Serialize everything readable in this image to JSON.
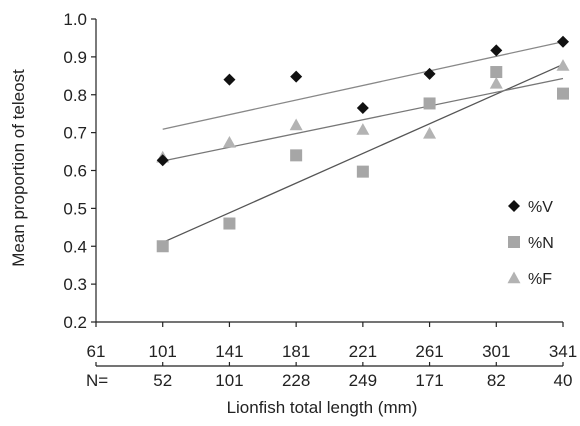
{
  "chart_data": {
    "type": "scatter",
    "title": "",
    "xlabel": "Lionfish total length (mm)",
    "ylabel": "Mean proportion of teleost",
    "x_ticks": [
      61,
      101,
      141,
      181,
      221,
      261,
      301,
      341
    ],
    "xlim": [
      61,
      341
    ],
    "ylim": [
      0.2,
      1.0
    ],
    "y_ticks": [
      "0.2",
      "0.3",
      "0.4",
      "0.5",
      "0.6",
      "0.7",
      "0.8",
      "0.9",
      "1.0"
    ],
    "grid": false,
    "legend_position": "right",
    "sample_size": {
      "label": "N=",
      "x": [
        101,
        141,
        181,
        221,
        261,
        301,
        341
      ],
      "values": [
        52,
        101,
        228,
        249,
        171,
        82,
        40
      ]
    },
    "series": [
      {
        "name": "%V",
        "marker": "diamond",
        "color": "#111111",
        "x": [
          101,
          141,
          181,
          221,
          261,
          301,
          341
        ],
        "values": [
          0.627,
          0.84,
          0.848,
          0.765,
          0.855,
          0.917,
          0.94
        ],
        "trendline": {
          "start": [
            101,
            0.709
          ],
          "end": [
            341,
            0.94
          ],
          "color": "#888888"
        }
      },
      {
        "name": "%N",
        "marker": "square",
        "color": "#a6a6a6",
        "x": [
          101,
          141,
          181,
          221,
          261,
          301,
          341
        ],
        "values": [
          0.4,
          0.46,
          0.64,
          0.597,
          0.777,
          0.86,
          0.803
        ],
        "trendline": {
          "start": [
            101,
            0.41
          ],
          "end": [
            341,
            0.88
          ],
          "color": "#555555"
        }
      },
      {
        "name": "%F",
        "marker": "triangle",
        "color": "#b3b3b3",
        "x": [
          101,
          141,
          181,
          221,
          261,
          301,
          341
        ],
        "values": [
          0.635,
          0.674,
          0.72,
          0.708,
          0.698,
          0.83,
          0.877
        ],
        "trendline": {
          "start": [
            101,
            0.625
          ],
          "end": [
            341,
            0.843
          ],
          "color": "#777777"
        }
      }
    ]
  }
}
